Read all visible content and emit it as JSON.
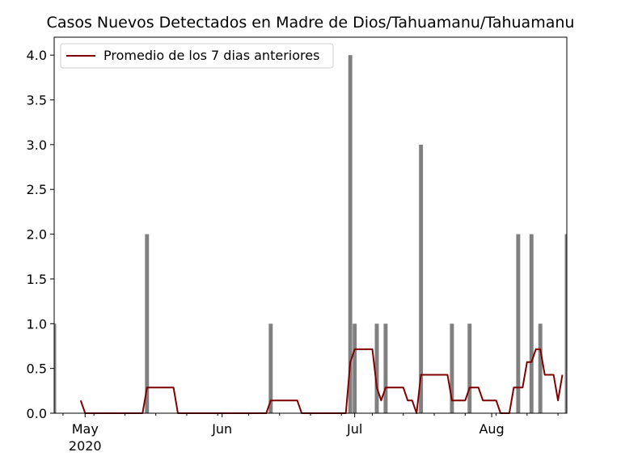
{
  "chart_data": {
    "type": "bar",
    "title": "Casos Nuevos Detectados en Madre de Dios/Tahuamanu/Tahuamanu",
    "xlabel": "",
    "ylabel": "",
    "xlim": [
      "2020-04-24",
      "2020-08-18"
    ],
    "ylim": [
      0,
      4.2
    ],
    "yticks": [
      0.0,
      0.5,
      1.0,
      1.5,
      2.0,
      2.5,
      3.0,
      3.5,
      4.0
    ],
    "ytick_labels": [
      "0.0",
      "0.5",
      "1.0",
      "1.5",
      "2.0",
      "2.5",
      "3.0",
      "3.5",
      "4.0"
    ],
    "xticks": [
      {
        "date": "2020-05-01",
        "label": "May",
        "sublabel": "2020"
      },
      {
        "date": "2020-06-01",
        "label": "Jun",
        "sublabel": ""
      },
      {
        "date": "2020-07-01",
        "label": "Jul",
        "sublabel": ""
      },
      {
        "date": "2020-08-01",
        "label": "Aug",
        "sublabel": ""
      }
    ],
    "bar_color": "#808080",
    "line_color": "#800000",
    "legend": {
      "position": "top-left",
      "entries": [
        "Promedio de los 7 dias anteriores"
      ]
    },
    "grid": false,
    "series": [
      {
        "type": "bar",
        "x": [
          "2020-04-24",
          "2020-05-15",
          "2020-06-12",
          "2020-06-30",
          "2020-07-01",
          "2020-07-06",
          "2020-07-08",
          "2020-07-16",
          "2020-07-23",
          "2020-07-27",
          "2020-08-07",
          "2020-08-10",
          "2020-08-12",
          "2020-08-18"
        ],
        "y": [
          1,
          2,
          1,
          4,
          1,
          1,
          1,
          3,
          1,
          1,
          2,
          2,
          1,
          2
        ]
      },
      {
        "type": "line",
        "name": "Promedio de los 7 dias anteriores",
        "x": [
          "2020-04-30",
          "2020-05-01",
          "2020-05-14",
          "2020-05-15",
          "2020-05-21",
          "2020-05-22",
          "2020-06-11",
          "2020-06-12",
          "2020-06-18",
          "2020-06-19",
          "2020-06-29",
          "2020-06-30",
          "2020-07-01",
          "2020-07-05",
          "2020-07-06",
          "2020-07-07",
          "2020-07-08",
          "2020-07-12",
          "2020-07-13",
          "2020-07-14",
          "2020-07-15",
          "2020-07-16",
          "2020-07-22",
          "2020-07-23",
          "2020-07-26",
          "2020-07-27",
          "2020-07-29",
          "2020-07-30",
          "2020-08-02",
          "2020-08-03",
          "2020-08-05",
          "2020-08-06",
          "2020-08-08",
          "2020-08-09",
          "2020-08-10",
          "2020-08-11",
          "2020-08-12",
          "2020-08-13",
          "2020-08-15",
          "2020-08-16",
          "2020-08-17"
        ],
        "y": [
          0.143,
          0.0,
          0.0,
          0.286,
          0.286,
          0.0,
          0.0,
          0.143,
          0.143,
          0.0,
          0.0,
          0.571,
          0.714,
          0.714,
          0.286,
          0.143,
          0.286,
          0.286,
          0.143,
          0.143,
          0.0,
          0.429,
          0.429,
          0.143,
          0.143,
          0.286,
          0.286,
          0.143,
          0.143,
          0.0,
          0.0,
          0.286,
          0.286,
          0.571,
          0.571,
          0.714,
          0.714,
          0.429,
          0.429,
          0.143,
          0.429
        ]
      }
    ]
  }
}
